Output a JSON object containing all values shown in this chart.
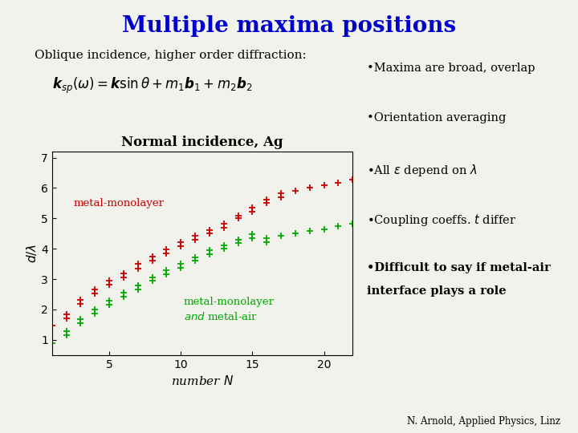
{
  "title": "Multiple maxima positions",
  "title_color": "#0000CC",
  "subtitle": "Oblique incidence, higher order diffraction:",
  "formula": "$\\boldsymbol{k}_{sp}(\\omega) = \\boldsymbol{k}\\sin\\theta + m_1\\boldsymbol{b}_1 + m_2\\boldsymbol{b}_2$",
  "plot_title": "Normal incidence, Ag",
  "xlabel": "number $N$",
  "ylabel": "$d/\\lambda$",
  "xlim": [
    1,
    22
  ],
  "ylim": [
    0.5,
    7.2
  ],
  "yticks": [
    1,
    2,
    3,
    4,
    5,
    6,
    7
  ],
  "xticks": [
    5,
    10,
    15,
    20
  ],
  "bg_color": "#f2f2ec",
  "red_color": "#cc0000",
  "green_color": "#00aa00",
  "red_label": "metal-monolayer",
  "green_label1": "metal-monolayer",
  "green_label2": "and  metal-air",
  "bullet_points": [
    "Maxima are broad, overlap",
    "Orientation averaging",
    "All $\\varepsilon$ depend on $\\lambda$",
    "Coupling coeffs. $t$ differ",
    "Difficult to say if metal-air\ninterface plays a role"
  ],
  "bullet_bold": [
    false,
    false,
    false,
    false,
    true
  ],
  "credit": "N. Arnold, Applied Physics, Linz",
  "red_x": [
    1,
    2,
    2,
    3,
    3,
    4,
    4,
    5,
    5,
    6,
    6,
    7,
    7,
    8,
    8,
    9,
    9,
    10,
    10,
    11,
    11,
    12,
    12,
    13,
    13,
    14,
    14,
    15,
    15,
    16,
    16,
    17,
    17,
    18,
    19,
    20,
    21,
    22
  ],
  "red_y": [
    1.47,
    1.72,
    1.85,
    2.18,
    2.32,
    2.52,
    2.65,
    2.83,
    2.96,
    3.05,
    3.18,
    3.35,
    3.5,
    3.6,
    3.75,
    3.85,
    3.97,
    4.08,
    4.22,
    4.3,
    4.42,
    4.5,
    4.62,
    4.7,
    4.82,
    5.0,
    5.1,
    5.22,
    5.35,
    5.5,
    5.62,
    5.7,
    5.82,
    5.9,
    6.0,
    6.08,
    6.18,
    6.27
  ],
  "green_x": [
    1,
    2,
    2,
    3,
    3,
    4,
    4,
    5,
    5,
    6,
    6,
    7,
    7,
    8,
    8,
    9,
    9,
    10,
    10,
    11,
    11,
    12,
    12,
    13,
    13,
    14,
    14,
    15,
    15,
    16,
    16,
    17,
    18,
    19,
    20,
    21,
    22
  ],
  "green_y": [
    0.88,
    1.15,
    1.28,
    1.55,
    1.68,
    1.88,
    2.0,
    2.15,
    2.28,
    2.42,
    2.55,
    2.65,
    2.8,
    2.95,
    3.05,
    3.15,
    3.28,
    3.38,
    3.5,
    3.6,
    3.72,
    3.82,
    3.95,
    4.0,
    4.12,
    4.2,
    4.3,
    4.35,
    4.48,
    4.22,
    4.35,
    4.42,
    4.5,
    4.58,
    4.65,
    4.75,
    4.82
  ]
}
